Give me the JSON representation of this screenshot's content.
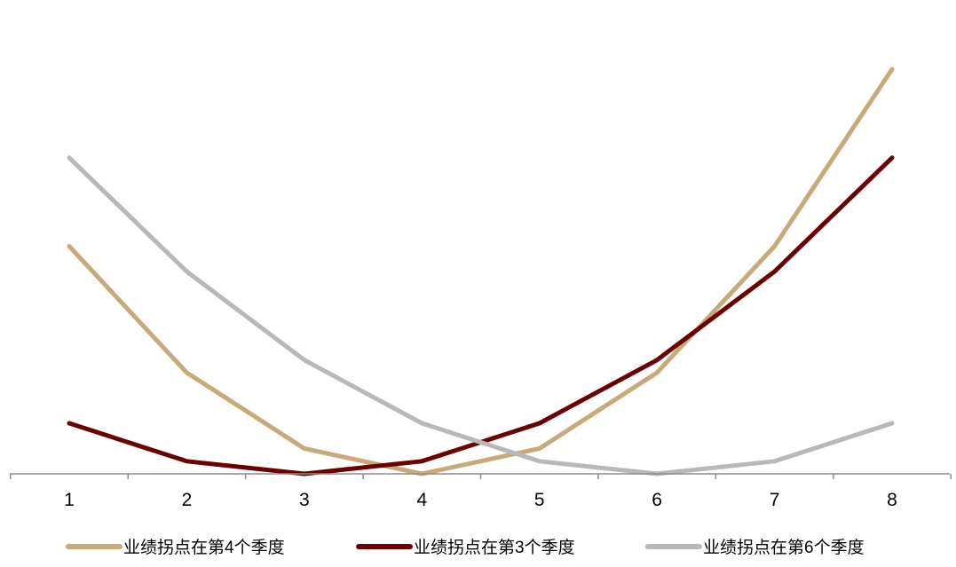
{
  "chart_data": {
    "type": "line",
    "title": "",
    "xlabel": "",
    "ylabel": "",
    "y_axis_visible": false,
    "grid": false,
    "legend_position": "bottom",
    "x": [
      1,
      2,
      3,
      4,
      5,
      6,
      7,
      8
    ],
    "categories": [
      "1",
      "2",
      "3",
      "4",
      "5",
      "6",
      "7",
      "8"
    ],
    "ylim": [
      0,
      6.5
    ],
    "series": [
      {
        "name": "业绩拐点在第4个季度",
        "color": "#C8A97A",
        "values": [
          3.6,
          1.6,
          0.4,
          0.0,
          0.4,
          1.6,
          3.6,
          6.4
        ]
      },
      {
        "name": "业绩拐点在第3个季度",
        "color": "#6B0000",
        "values": [
          0.8,
          0.2,
          0.0,
          0.2,
          0.8,
          1.8,
          3.2,
          5.0
        ]
      },
      {
        "name": "业绩拐点在第6个季度",
        "color": "#B8B8B8",
        "values": [
          5.0,
          3.2,
          1.8,
          0.8,
          0.2,
          0.0,
          0.2,
          0.8
        ]
      }
    ]
  }
}
